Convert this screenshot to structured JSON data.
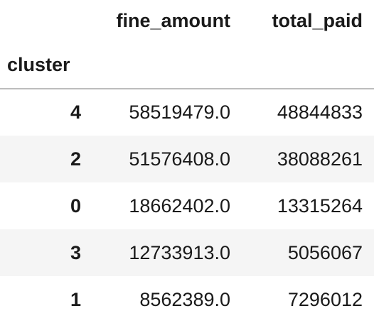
{
  "table": {
    "index_name": "cluster",
    "columns": [
      "fine_amount",
      "total_paid"
    ],
    "rows": [
      {
        "index": "4",
        "fine_amount": "58519479.0",
        "total_paid": "48844833"
      },
      {
        "index": "2",
        "fine_amount": "51576408.0",
        "total_paid": "38088261"
      },
      {
        "index": "0",
        "fine_amount": "18662402.0",
        "total_paid": "13315264"
      },
      {
        "index": "3",
        "fine_amount": "12733913.0",
        "total_paid": "5056067"
      },
      {
        "index": "1",
        "fine_amount": "8562389.0",
        "total_paid": "7296012"
      }
    ]
  }
}
